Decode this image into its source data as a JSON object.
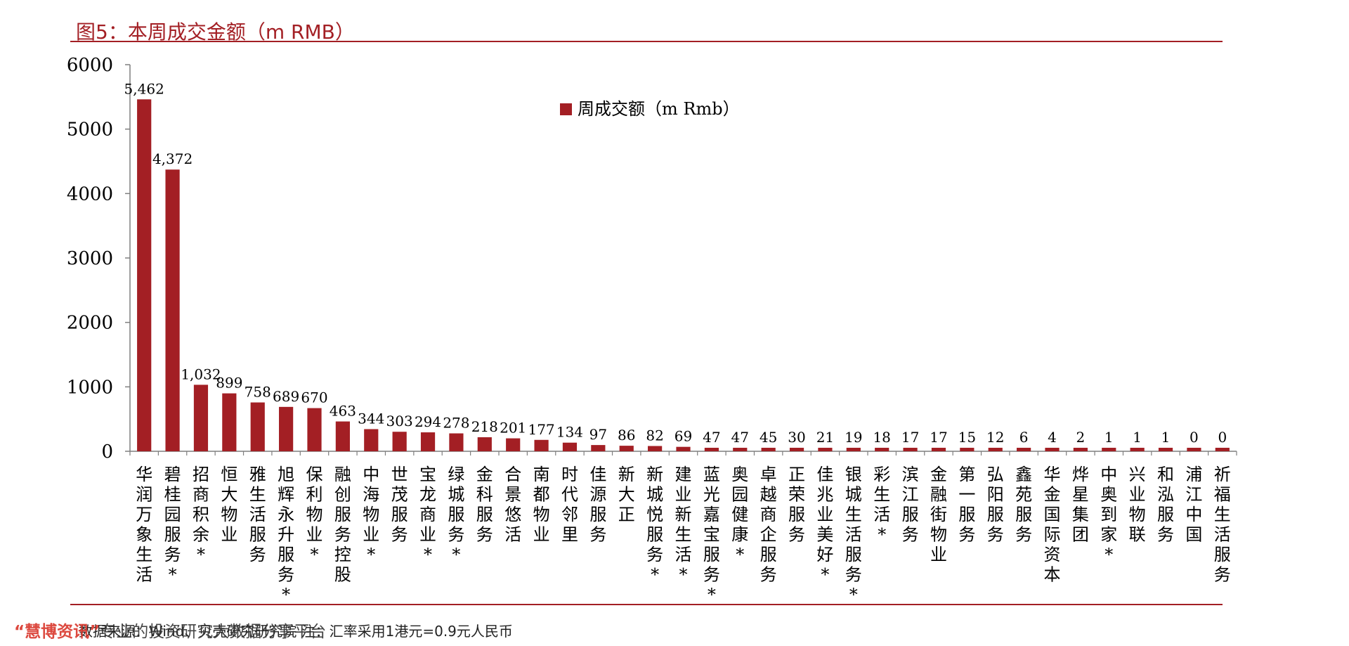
{
  "page": {
    "title": "图5：本周成交金额（m RMB）",
    "source": "数据来源：Wind、贝壳研究研究院  注：汇率采用1港元=0.9元人民币",
    "watermark_brand": "“慧博资讯”",
    "watermark_text": "专业的投资研究大数据分享平台"
  },
  "colors": {
    "bar": "#a31f24",
    "accent": "#a31f24",
    "axis": "#7f7f7f"
  },
  "chart_data": {
    "type": "bar",
    "legend": "周成交额（m Rmb）",
    "legend_position": "top-center",
    "ylim": [
      0,
      6000
    ],
    "yticks": [
      0,
      1000,
      2000,
      3000,
      4000,
      5000,
      6000
    ],
    "grid": false,
    "categories": [
      "华润万象生活",
      "碧桂园服务*",
      "招商积余*",
      "恒大物业",
      "雅生活服务",
      "旭辉永升服务*",
      "保利物业*",
      "融创服务控股",
      "中海物业*",
      "世茂服务",
      "宝龙商业*",
      "绿城服务*",
      "金科服务",
      "合景悠活",
      "南都物业",
      "时代邻里",
      "佳源服务",
      "新大正",
      "新城悦服务*",
      "建业新生活*",
      "蓝光嘉宝服务*",
      "奥园健康*",
      "卓越商企服务",
      "正荣服务",
      "佳兆业美好*",
      "银城生活服务*",
      "彩生活*",
      "滨江服务",
      "金融街物业",
      "第一服务",
      "弘阳服务",
      "鑫苑服务",
      "华金国际资本",
      "烨星集团",
      "中奥到家*",
      "兴业物联",
      "和泓服务",
      "浦江中国",
      "祈福生活服务"
    ],
    "values": [
      5462,
      4372,
      1032,
      899,
      758,
      689,
      670,
      463,
      344,
      303,
      294,
      278,
      218,
      201,
      177,
      134,
      97,
      86,
      82,
      69,
      47,
      47,
      45,
      30,
      21,
      19,
      18,
      17,
      17,
      15,
      12,
      6,
      4,
      2,
      1,
      1,
      1,
      0,
      0
    ],
    "value_labels": [
      "5,462",
      "4,372",
      "1,032",
      "899",
      "758",
      "689",
      "670",
      "463",
      "344",
      "303",
      "294",
      "278",
      "218",
      "201",
      "177",
      "134",
      "97",
      "86",
      "82",
      "69",
      "47",
      "47",
      "45",
      "30",
      "21",
      "19",
      "18",
      "17",
      "17",
      "15",
      "12",
      "6",
      "4",
      "2",
      "1",
      "1",
      "1",
      "0",
      "0"
    ]
  }
}
